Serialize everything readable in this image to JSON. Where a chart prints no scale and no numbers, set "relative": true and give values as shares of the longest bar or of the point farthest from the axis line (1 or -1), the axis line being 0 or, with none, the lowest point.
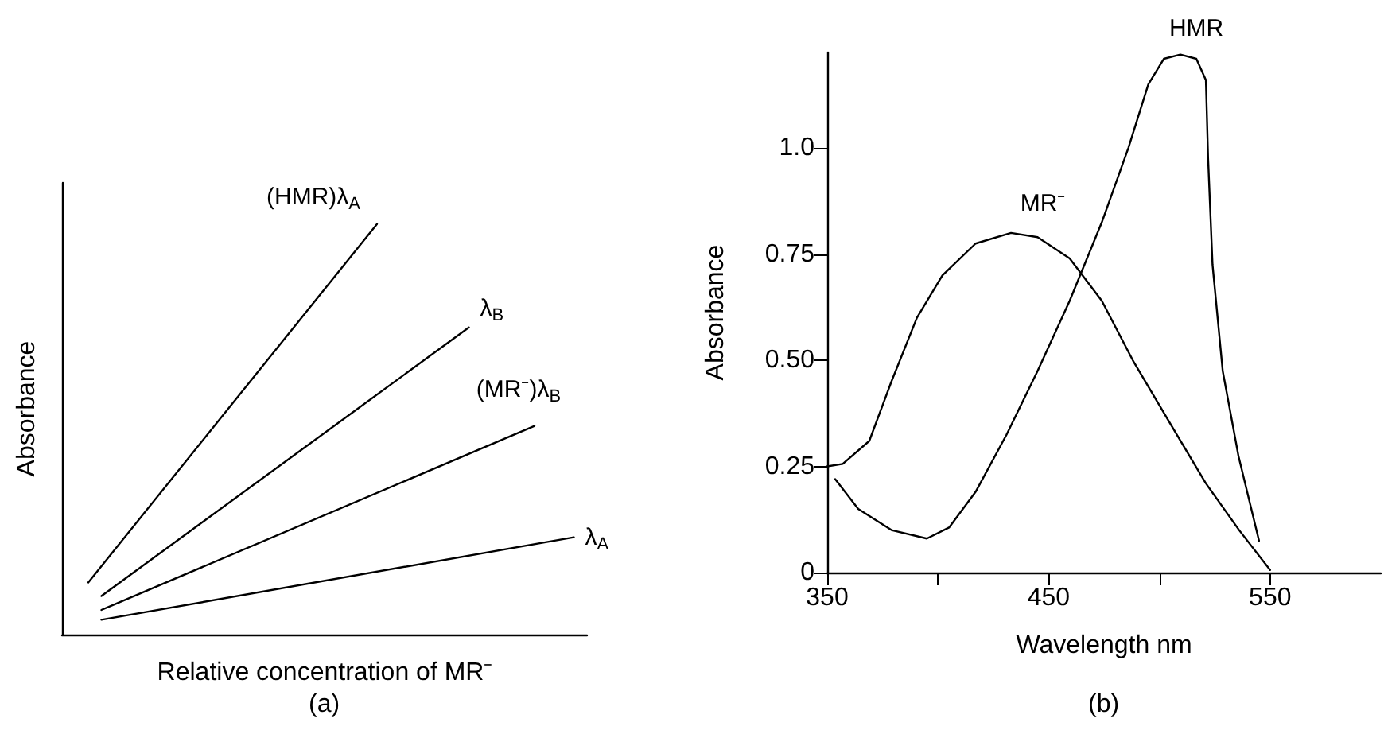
{
  "chart_data": [
    {
      "type": "line",
      "relative": true,
      "xlabel": "Relative concentration of MR⁻",
      "ylabel": "Absorbance",
      "annotations": [
        "(a)"
      ],
      "grid": false,
      "legend": false,
      "marker": "none",
      "line_style": "solid",
      "categories": [
        null,
        null,
        null,
        null,
        null,
        null,
        null,
        null,
        null,
        null,
        null,
        null,
        null,
        null,
        null,
        null,
        null,
        null,
        null,
        null,
        null,
        null,
        null,
        null,
        null,
        null,
        null,
        null,
        null,
        null,
        null,
        null,
        null,
        null,
        null,
        null,
        null,
        null,
        null,
        null,
        null
      ],
      "series": [
        {
          "name": "(HMR)λ$_{A}$",
          "color": "#000000",
          "values": [
            null,
            null,
            0.127,
            null,
            null,
            null,
            null,
            null,
            null,
            null,
            null,
            null,
            null,
            null,
            null,
            null,
            null,
            null,
            null,
            null,
            null,
            null,
            null,
            null,
            1,
            null,
            null,
            null,
            null,
            null,
            null,
            null,
            null,
            null,
            null,
            null,
            null,
            null,
            null,
            null,
            null
          ]
        },
        {
          "name": "λ$_{B}$",
          "color": "#000000",
          "values": [
            null,
            null,
            null,
            0.094,
            null,
            null,
            null,
            null,
            null,
            null,
            null,
            null,
            null,
            null,
            null,
            null,
            null,
            null,
            null,
            null,
            null,
            null,
            null,
            null,
            null,
            null,
            null,
            null,
            null,
            null,
            null,
            0.748,
            null,
            null,
            null,
            null,
            null,
            null,
            null,
            null,
            null
          ]
        },
        {
          "name": "(MR⁻)λ$_{B}$",
          "color": "#000000",
          "values": [
            null,
            null,
            null,
            0.06,
            null,
            null,
            null,
            null,
            null,
            null,
            null,
            null,
            null,
            null,
            null,
            null,
            null,
            null,
            null,
            null,
            null,
            null,
            null,
            null,
            null,
            null,
            null,
            null,
            null,
            null,
            null,
            null,
            null,
            null,
            null,
            null,
            0.508,
            null,
            null,
            null,
            null
          ]
        },
        {
          "name": "λ$_{A}$",
          "color": "#000000",
          "values": [
            null,
            null,
            null,
            0.036,
            null,
            null,
            null,
            null,
            null,
            null,
            null,
            null,
            null,
            null,
            null,
            null,
            null,
            null,
            null,
            null,
            null,
            null,
            null,
            null,
            null,
            null,
            null,
            null,
            null,
            null,
            null,
            null,
            null,
            null,
            null,
            null,
            null,
            null,
            null,
            0.237,
            null
          ]
        }
      ]
    },
    {
      "type": "line",
      "xlabel": "Wavelength nm",
      "ylabel": "Absorbance",
      "annotations": [
        "(b)"
      ],
      "xlim": [
        350,
        600
      ],
      "ylim": [
        0,
        1.225
      ],
      "xticks": [
        350,
        {
          "value": 400,
          "label": null
        },
        450,
        {
          "value": 500,
          "label": null
        },
        550
      ],
      "yticks": [
        0,
        {
          "value": 0.25,
          "label": "0.25"
        },
        {
          "value": 0.5,
          "label": "0.50"
        },
        {
          "value": 0.75,
          "label": "0.75"
        },
        {
          "value": 1,
          "label": "1.0"
        }
      ],
      "grid": false,
      "legend": false,
      "marker": "none",
      "line_style": "solid",
      "series": [
        {
          "name": "MR⁻",
          "color": "#000000",
          "x": [
            350,
            357,
            369,
            379,
            390.5,
            402,
            417,
            433,
            445,
            459.5,
            474,
            488,
            505,
            521,
            536,
            550
          ],
          "values": [
            0.25,
            0.256,
            0.31,
            0.45,
            0.6,
            0.7,
            0.775,
            0.8,
            0.79,
            0.74,
            0.64,
            0.5,
            0.35,
            0.21,
            0.1,
            0.006
          ]
        },
        {
          "name": "HMR",
          "color": "#000000",
          "x": [
            353.6,
            364,
            379,
            395,
            405,
            417,
            431,
            445,
            459.5,
            474,
            486,
            495,
            502,
            509.5,
            516.7,
            521,
            522,
            524,
            528.6,
            535.7,
            545
          ],
          "values": [
            0.22,
            0.15,
            0.1,
            0.08,
            0.106,
            0.19,
            0.325,
            0.475,
            0.64,
            0.825,
            1.0,
            1.15,
            1.21,
            1.22,
            1.21,
            1.16,
            0.975,
            0.725,
            0.475,
            0.275,
            0.075
          ]
        }
      ]
    }
  ]
}
